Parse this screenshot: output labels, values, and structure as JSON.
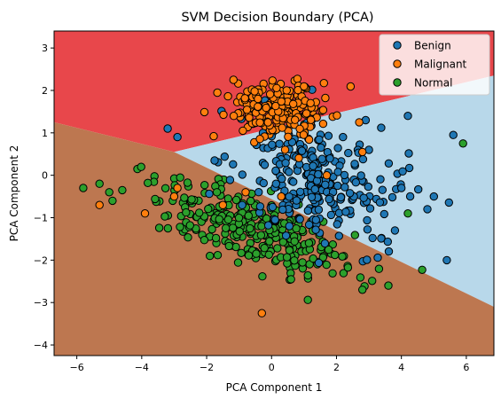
{
  "chart_data": {
    "type": "scatter",
    "title": "SVM Decision Boundary (PCA)",
    "xlabel": "PCA Component 1",
    "ylabel": "PCA Component 2",
    "xlim": [
      -6.7,
      6.85
    ],
    "ylim": [
      -4.25,
      3.4
    ],
    "xticks": [
      -6,
      -4,
      -2,
      0,
      2,
      4,
      6
    ],
    "yticks": [
      -4,
      -3,
      -2,
      -1,
      0,
      1,
      2,
      3
    ],
    "grid": false,
    "legend_position": "top-right",
    "regions": [
      {
        "class": "Malignant",
        "color": "#e8474b"
      },
      {
        "class": "Benign",
        "color": "#b8d8ea"
      },
      {
        "class": "Normal",
        "color": "#bd7750"
      }
    ],
    "boundaries": [
      {
        "between": [
          "Malignant",
          "Normal"
        ],
        "points": [
          [
            -6.7,
            1.25
          ],
          [
            -3.0,
            0.55
          ]
        ]
      },
      {
        "between": [
          "Malignant",
          "Benign"
        ],
        "points": [
          [
            -3.0,
            0.55
          ],
          [
            6.85,
            2.35
          ]
        ]
      },
      {
        "between": [
          "Benign",
          "Normal"
        ],
        "points": [
          [
            -3.0,
            0.55
          ],
          [
            6.85,
            -3.1
          ]
        ]
      }
    ],
    "series": [
      {
        "name": "Benign",
        "color": "#1f77b4",
        "x": [],
        "y": [],
        "cluster": {
          "center": [
            1.5,
            -0.2
          ],
          "spread": [
            1.3,
            0.75
          ],
          "count": 260
        },
        "extra_points": [
          [
            -3.2,
            1.1
          ],
          [
            -2.9,
            0.9
          ],
          [
            4.2,
            1.4
          ],
          [
            5.6,
            0.95
          ],
          [
            5.4,
            -2.0
          ],
          [
            4.8,
            -0.8
          ],
          [
            3.0,
            0.6
          ],
          [
            2.2,
            0.9
          ],
          [
            2.9,
            1.3
          ],
          [
            4.0,
            -0.3
          ],
          [
            5.0,
            -0.5
          ],
          [
            3.8,
            -1.3
          ]
        ]
      },
      {
        "name": "Malignant",
        "color": "#ff7f0e",
        "x": [],
        "y": [],
        "cluster": {
          "center": [
            0.1,
            1.55
          ],
          "spread": [
            0.8,
            0.35
          ],
          "count": 190
        },
        "extra_points": [
          [
            -2.9,
            -0.3
          ],
          [
            -3.0,
            -0.5
          ],
          [
            -3.9,
            -0.9
          ],
          [
            -5.3,
            -0.7
          ],
          [
            -0.3,
            -3.25
          ],
          [
            2.7,
            1.25
          ],
          [
            2.8,
            0.55
          ],
          [
            1.7,
            0.0
          ],
          [
            0.3,
            -0.5
          ],
          [
            -0.8,
            -0.4
          ],
          [
            -1.5,
            -0.7
          ],
          [
            1.2,
            1.7
          ]
        ]
      },
      {
        "name": "Normal",
        "color": "#2ca02c",
        "x": [],
        "y": [],
        "cluster": {
          "center": [
            -0.6,
            -1.25
          ],
          "spread": [
            1.5,
            0.45
          ],
          "count": 280
        },
        "extra_points": [
          [
            -5.8,
            -0.3
          ],
          [
            -5.3,
            -0.2
          ],
          [
            -5.0,
            -0.4
          ],
          [
            -4.6,
            -0.35
          ],
          [
            -4.9,
            -0.6
          ],
          [
            3.6,
            -2.6
          ],
          [
            2.8,
            -2.7
          ],
          [
            5.9,
            0.75
          ],
          [
            1.0,
            1.2
          ],
          [
            0.2,
            1.3
          ],
          [
            0.6,
            -2.45
          ],
          [
            -1.9,
            -1.9
          ],
          [
            4.2,
            -0.9
          ]
        ]
      }
    ],
    "random_seed": 42
  }
}
